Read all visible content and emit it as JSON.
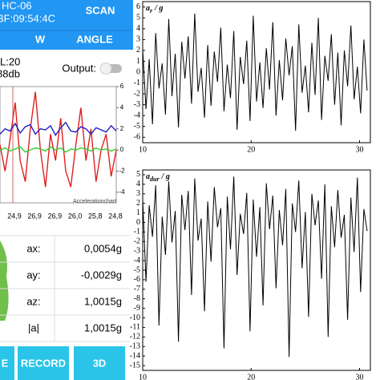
{
  "app": {
    "device_name": "HC-06",
    "device_address": "BF:09:54:4C",
    "scan_button": "SCAN",
    "tabs": [
      "W",
      "ANGLE"
    ],
    "info_lines": [
      "L:20",
      "88db"
    ],
    "output_label": "Output:",
    "mini_chart": {
      "type": "line",
      "annotation": "Accelerationchart",
      "ylim": [
        -5,
        6
      ],
      "yticks": [
        6,
        4,
        2,
        0,
        -2,
        -4
      ],
      "xtick_labels": [
        "24,9",
        "26,9",
        "26,9",
        "26,0",
        "25,8",
        "24,8"
      ],
      "series": [
        {
          "color": "#e02020",
          "values": [
            0.5,
            -2,
            1,
            4.5,
            -1,
            -3,
            2,
            5.5,
            0,
            -3.5,
            1.5,
            -1,
            3,
            -2,
            -3.5,
            0.5,
            4,
            -1,
            2,
            -3,
            0,
            1.5,
            -2.5,
            0
          ]
        },
        {
          "color": "#2020c0",
          "values": [
            1.5,
            2,
            1.8,
            2.5,
            1.6,
            2.2,
            2.4,
            1.5,
            2,
            1.9,
            2.3,
            1.4,
            2.1,
            2.6,
            1.8,
            1.7,
            2.2,
            2,
            1.5,
            2.1,
            1.9,
            1.7,
            2.3,
            1.8
          ]
        },
        {
          "color": "#30d030",
          "values": [
            0,
            0.2,
            -0.1,
            0.1,
            0.3,
            -0.2,
            0,
            0.2,
            0.1,
            -0.1,
            0.3,
            0,
            0.2,
            -0.2,
            0.1,
            0,
            0.2,
            0.1,
            -0.1,
            0.2,
            0,
            0.1,
            -0.1,
            0.1
          ]
        }
      ]
    },
    "readings": [
      [
        "ax:",
        "0,0054g"
      ],
      [
        "ay:",
        "-0,0029g"
      ],
      [
        "az:",
        "1,0015g"
      ],
      [
        "|a|",
        "1,0015g"
      ]
    ],
    "buttons": [
      "E",
      "RECORD",
      "3D"
    ]
  },
  "chart_data": [
    {
      "type": "line",
      "title": {
        "main": "a",
        "sub": "r",
        "rest": "/ g"
      },
      "xlim": [
        10,
        31
      ],
      "xticks": [
        10,
        20,
        30
      ],
      "ylim": [
        -6.5,
        6.5
      ],
      "yticks": [
        6,
        5,
        4,
        3,
        2,
        1,
        0,
        -1,
        -2,
        -3,
        -4,
        -5,
        -6
      ],
      "x": [
        10,
        10.3,
        10.6,
        10.9,
        11.2,
        11.5,
        11.8,
        12.1,
        12.4,
        12.7,
        13,
        13.3,
        13.6,
        13.9,
        14.2,
        14.5,
        14.8,
        15.1,
        15.4,
        15.7,
        16,
        16.3,
        16.6,
        16.9,
        17.2,
        17.5,
        17.8,
        18.1,
        18.4,
        18.7,
        19,
        19.3,
        19.6,
        19.9,
        20.2,
        20.5,
        20.8,
        21.1,
        21.4,
        21.7,
        22,
        22.3,
        22.6,
        22.9,
        23.2,
        23.5,
        23.8,
        24.1,
        24.4,
        24.7,
        25,
        25.3,
        25.6,
        25.9,
        26.2,
        26.5,
        26.8,
        27.1,
        27.4,
        27.7,
        28,
        28.3,
        28.6,
        28.9,
        29.2,
        29.5,
        29.8,
        30.1,
        30.4,
        30.7
      ],
      "series": [
        {
          "color": "#000000",
          "values": [
            2.1,
            -3.4,
            1.2,
            -4.8,
            3.6,
            -1.5,
            0.8,
            -3.9,
            4.9,
            -2.2,
            1.7,
            -5.1,
            2.8,
            -0.6,
            3.3,
            -2.9,
            5.4,
            -1.8,
            0.4,
            -4.2,
            2.5,
            -3.1,
            1.9,
            -0.9,
            4.1,
            -3.6,
            0.7,
            -2.4,
            3.8,
            -5.3,
            1.4,
            -1.1,
            2.9,
            -4.5,
            5.2,
            -2.7,
            0.9,
            -3.3,
            2.2,
            -1.6,
            4.6,
            -4.0,
            1.1,
            -2.6,
            3.1,
            -0.3,
            2.4,
            -5.4,
            4.4,
            -1.9,
            0.6,
            -3.7,
            2.7,
            -2.1,
            5.0,
            -4.4,
            1.5,
            -0.8,
            3.5,
            -3.0,
            1.8,
            -4.9,
            2.0,
            -1.3,
            4.3,
            -2.5,
            0.5,
            -3.8,
            3.0,
            -1.7
          ]
        }
      ]
    },
    {
      "type": "line",
      "title": {
        "main": "a",
        "sub": "dur",
        "rest": "/ g"
      },
      "xlim": [
        10,
        31
      ],
      "xticks": [
        10,
        20,
        30
      ],
      "ylim": [
        -15.5,
        5.5
      ],
      "yticks": [
        5,
        4,
        3,
        2,
        1,
        0,
        -1,
        -2,
        -3,
        -4,
        -5,
        -6,
        -7,
        -8,
        -9,
        -10,
        -11,
        -12,
        -13,
        -14,
        -15
      ],
      "x": [
        10,
        10.3,
        10.6,
        10.9,
        11.2,
        11.5,
        11.8,
        12.1,
        12.4,
        12.7,
        13,
        13.3,
        13.6,
        13.9,
        14.2,
        14.5,
        14.8,
        15.1,
        15.4,
        15.7,
        16,
        16.3,
        16.6,
        16.9,
        17.2,
        17.5,
        17.8,
        18.1,
        18.4,
        18.7,
        19,
        19.3,
        19.6,
        19.9,
        20.2,
        20.5,
        20.8,
        21.1,
        21.4,
        21.7,
        22,
        22.3,
        22.6,
        22.9,
        23.2,
        23.5,
        23.8,
        24.1,
        24.4,
        24.7,
        25,
        25.3,
        25.6,
        25.9,
        26.2,
        26.5,
        26.8,
        27.1,
        27.4,
        27.7,
        28,
        28.3,
        28.6,
        28.9,
        29.2,
        29.5,
        29.8,
        30.1,
        30.4,
        30.7
      ],
      "series": [
        {
          "color": "#000000",
          "values": [
            2.5,
            -6.2,
            1.8,
            -1.5,
            3.9,
            -10.8,
            0.6,
            -3.4,
            4.3,
            -2.1,
            1.2,
            -12.5,
            2.9,
            -0.8,
            3.3,
            -7.6,
            4.6,
            -1.9,
            0.4,
            -9.3,
            2.2,
            -4.1,
            3.7,
            -0.5,
            1.5,
            -13.2,
            2.7,
            -2.8,
            4.8,
            -5.5,
            0.9,
            -1.2,
            3.1,
            -11.4,
            2.4,
            -3.6,
            1.6,
            -8.7,
            4.1,
            -0.7,
            2.8,
            -6.9,
            1.3,
            -2.4,
            3.5,
            -14.1,
            2.0,
            -1.0,
            4.4,
            -4.8,
            1.1,
            -9.9,
            3.0,
            -0.3,
            2.3,
            -5.9,
            4.0,
            -12.0,
            1.7,
            -2.6,
            3.4,
            -1.6,
            0.8,
            -10.2,
            2.6,
            -3.1,
            4.7,
            -7.3,
            1.4,
            -0.9
          ]
        }
      ]
    }
  ]
}
